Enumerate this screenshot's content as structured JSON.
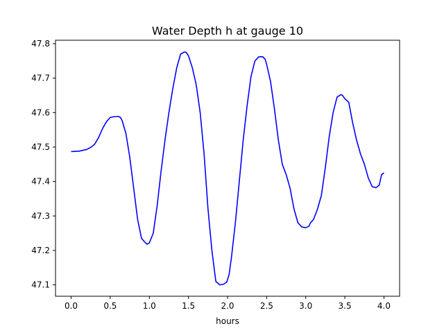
{
  "chart_data": {
    "type": "line",
    "title": "Water Depth h at gauge 10",
    "xlabel": "hours",
    "ylabel": "",
    "xlim": [
      -0.2,
      4.2
    ],
    "ylim": [
      47.067,
      47.81
    ],
    "grid": false,
    "legend": "none",
    "x_ticks": [
      0.0,
      0.5,
      1.0,
      1.5,
      2.0,
      2.5,
      3.0,
      3.5,
      4.0
    ],
    "x_tick_labels": [
      "0.0",
      "0.5",
      "1.0",
      "1.5",
      "2.0",
      "2.5",
      "3.0",
      "3.5",
      "4.0"
    ],
    "y_ticks": [
      47.1,
      47.2,
      47.3,
      47.4,
      47.5,
      47.6,
      47.7,
      47.8
    ],
    "y_tick_labels": [
      "47.1",
      "47.2",
      "47.3",
      "47.4",
      "47.5",
      "47.6",
      "47.7",
      "47.8"
    ],
    "colors": {
      "line": "#0000ff",
      "axes": "#000000",
      "background": "#ffffff"
    },
    "series": [
      {
        "x": [
          0.0,
          0.1,
          0.2,
          0.25,
          0.3,
          0.35,
          0.4,
          0.45,
          0.5,
          0.55,
          0.6,
          0.63,
          0.65,
          0.7,
          0.75,
          0.8,
          0.85,
          0.9,
          0.95,
          0.97,
          1.0,
          1.05,
          1.1,
          1.15,
          1.2,
          1.25,
          1.3,
          1.35,
          1.4,
          1.45,
          1.47,
          1.5,
          1.55,
          1.6,
          1.65,
          1.7,
          1.75,
          1.8,
          1.85,
          1.9,
          1.95,
          1.99,
          2.02,
          2.05,
          2.1,
          2.15,
          2.2,
          2.25,
          2.3,
          2.35,
          2.4,
          2.45,
          2.48,
          2.5,
          2.55,
          2.6,
          2.65,
          2.7,
          2.75,
          2.8,
          2.85,
          2.9,
          2.95,
          3.0,
          3.04,
          3.06,
          3.1,
          3.15,
          3.2,
          3.25,
          3.3,
          3.35,
          3.4,
          3.45,
          3.47,
          3.5,
          3.55,
          3.6,
          3.65,
          3.7,
          3.75,
          3.8,
          3.85,
          3.9,
          3.94,
          3.97,
          4.0
        ],
        "y": [
          47.487,
          47.488,
          47.493,
          47.499,
          47.508,
          47.527,
          47.553,
          47.573,
          47.586,
          47.588,
          47.589,
          47.586,
          47.578,
          47.54,
          47.47,
          47.38,
          47.29,
          47.235,
          47.222,
          47.218,
          47.222,
          47.25,
          47.33,
          47.43,
          47.52,
          47.6,
          47.67,
          47.73,
          47.77,
          47.776,
          47.775,
          47.765,
          47.73,
          47.68,
          47.6,
          47.48,
          47.32,
          47.2,
          47.11,
          47.1,
          47.102,
          47.108,
          47.13,
          47.18,
          47.28,
          47.4,
          47.52,
          47.62,
          47.705,
          47.75,
          47.762,
          47.762,
          47.755,
          47.74,
          47.69,
          47.61,
          47.52,
          47.45,
          47.42,
          47.38,
          47.32,
          47.28,
          47.268,
          47.266,
          47.27,
          47.28,
          47.29,
          47.32,
          47.36,
          47.44,
          47.53,
          47.6,
          47.645,
          47.652,
          47.65,
          47.64,
          47.63,
          47.57,
          47.52,
          47.48,
          47.45,
          47.41,
          47.385,
          47.382,
          47.39,
          47.42,
          47.425
        ]
      }
    ]
  }
}
